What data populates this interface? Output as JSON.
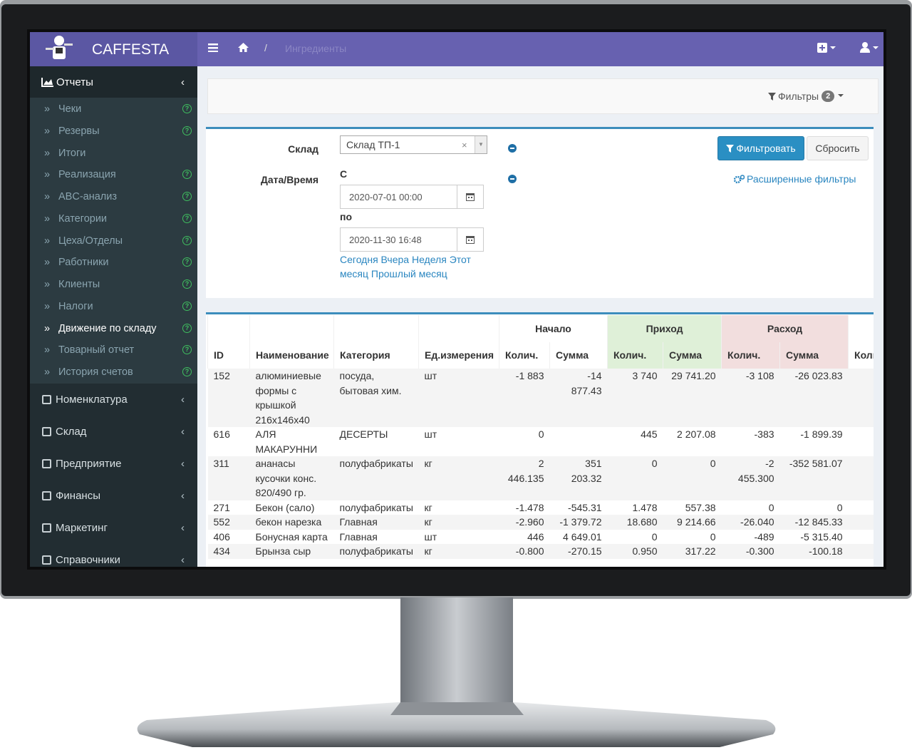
{
  "app": {
    "brand": "CAFFESTA",
    "breadcrumb": "Ингредиенты"
  },
  "sidebar": {
    "reports": {
      "label": "Отчеты",
      "items": [
        "Чеки",
        "Резервы",
        "Итоги",
        "Реализация",
        "ABC-анализ",
        "Категории",
        "Цеха/Отделы",
        "Работники",
        "Клиенты",
        "Налоги",
        "Движение по складу",
        "Товарный отчет",
        "История счетов"
      ]
    },
    "menu": [
      "Номенклатура",
      "Склад",
      "Предприятие",
      "Финансы",
      "Маркетинг",
      "Справочники"
    ]
  },
  "filters_toggle": {
    "label": "Фильтры",
    "count": "2"
  },
  "filter_form": {
    "warehouse_label": "Склад",
    "warehouse_value": "Склад ТП-1",
    "datetime_label": "Дата/Время",
    "from_label": "С",
    "from_value": "2020-07-01 00:00",
    "to_label": "по",
    "to_value": "2020-11-30 16:48",
    "quick_ranges": [
      "Сегодня",
      "Вчера",
      "Неделя",
      "Этот месяц",
      "Прошлый месяц"
    ],
    "filter_button": "Фильтровать",
    "reset_button": "Сбросить",
    "advanced": "Расширенные фильтры"
  },
  "table": {
    "groups": [
      "Начало",
      "Приход",
      "Расход"
    ],
    "columns": [
      "ID",
      "Наименование",
      "Категория",
      "Ед.измерения",
      "Колич.",
      "Сумма",
      "Колич.",
      "Сумма",
      "Колич.",
      "Сумма",
      "Колич."
    ],
    "rows": [
      [
        "152",
        "алюминиевые формы с крышкой 216х146х40",
        "посуда, бытовая хим.",
        "шт",
        "-1 883",
        "-14 877.43",
        "3 740",
        "29 741.20",
        "-3 108",
        "-26 023.83"
      ],
      [
        "616",
        "АЛЯ МАКАРУННИ",
        "ДЕСЕРТЫ",
        "шт",
        "0",
        null,
        "445",
        "2 207.08",
        "-383",
        "-1 899.39"
      ],
      [
        "311",
        "ананасы кусочки конс. 820/490 гр.",
        "полуфабрикаты",
        "кг",
        "2 446.135",
        "351 203.32",
        "0",
        "0",
        "-2 455.300",
        "-352 581.07"
      ],
      [
        "271",
        "Бекон (сало)",
        "полуфабрикаты",
        "кг",
        "-1.478",
        "-545.31",
        "1.478",
        "557.38",
        "0",
        "0"
      ],
      [
        "552",
        "бекон нарезка",
        "Главная",
        "кг",
        "-2.960",
        "-1 379.72",
        "18.680",
        "9 214.66",
        "-26.040",
        "-12 845.33"
      ],
      [
        "406",
        "Бонусная карта",
        "Главная",
        "шт",
        "446",
        "4 649.01",
        "0",
        "0",
        "-489",
        "-5 315.40"
      ],
      [
        "434",
        "Брынза сыр",
        "полуфабрикаты",
        "кг",
        "-0.800",
        "-270.15",
        "0.950",
        "317.22",
        "-0.300",
        "-100.18"
      ]
    ]
  }
}
